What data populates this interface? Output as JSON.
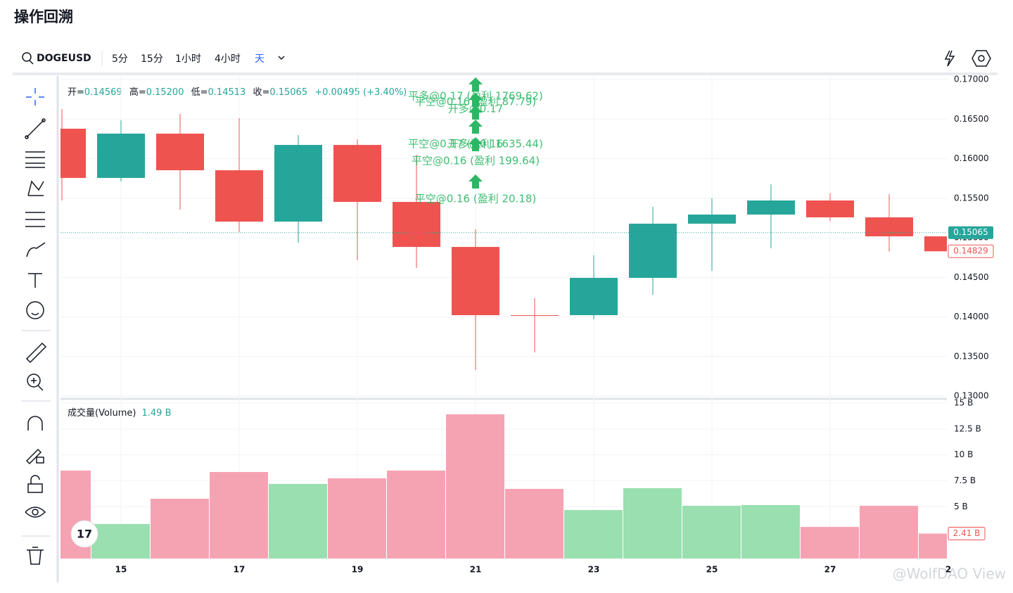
{
  "header": {
    "title": "操作回溯"
  },
  "toolbar": {
    "symbol": "DOGEUSD",
    "intervals": [
      "5分",
      "15分",
      "1小时",
      "4小时",
      "天"
    ]
  },
  "legend": {
    "open_label": "开=",
    "open": "0.14569",
    "high_label": "高=",
    "high": "0.15200",
    "low_label": "低=",
    "low": "0.14513",
    "close_label": "收=",
    "close": "0.15065",
    "change": "+0.00495 (+3.40%)"
  },
  "volume_legend": {
    "label": "成交量(Volume)",
    "value": "1.49 B"
  },
  "annotations": [
    "平多@0.17 (盈利 1769.62)",
    "平空@0.16 (盈利 87.79)",
    "开多@0.17",
    "平空@0.17 (盈利 1635.44)",
    "开多@0.16",
    "平空@0.16 (盈利 199.64)",
    "平空@0.16 (盈利 20.18)"
  ],
  "watermark": "@WolfDAO View",
  "chart_data": [
    {
      "type": "candlestick",
      "categories": [
        null,
        "15",
        null,
        "17",
        null,
        "19",
        null,
        "21",
        null,
        "23",
        null,
        "25",
        null,
        "27",
        null,
        "2"
      ],
      "open": [
        0.16378,
        0.15756,
        0.16316,
        0.15853,
        0.15204,
        0.16173,
        0.15453,
        0.14884,
        0.14022,
        0.14022,
        0.14493,
        0.15178,
        0.15293,
        0.15471,
        0.15258,
        0.15018
      ],
      "high": [
        0.16627,
        0.16484,
        0.16564,
        0.16511,
        0.16298,
        0.16244,
        0.16049,
        0.15107,
        0.14236,
        0.14778,
        0.15391,
        0.155,
        0.15676,
        0.1556,
        0.15551,
        0.15018
      ],
      "low": [
        0.15471,
        0.15711,
        0.15356,
        0.15071,
        0.14938,
        0.14716,
        0.14618,
        0.13329,
        0.13551,
        0.13969,
        0.1428,
        0.14582,
        0.14867,
        0.15213,
        0.14827,
        0.14829
      ],
      "close": [
        0.15756,
        0.16316,
        0.15853,
        0.15204,
        0.16173,
        0.15453,
        0.14884,
        0.14022,
        0.1402,
        0.14493,
        0.15178,
        0.15293,
        0.15471,
        0.15258,
        0.15018,
        0.14829
      ],
      "up_color": "#26a69a",
      "down_color": "#ef5350",
      "ylim": [
        0.13,
        0.17
      ],
      "yticks": [
        {
          "value": 0.17,
          "label": "0.17000"
        },
        {
          "value": 0.165,
          "label": "0.16500"
        },
        {
          "value": 0.16,
          "label": "0.16000"
        },
        {
          "value": 0.155,
          "label": "0.15500"
        },
        {
          "value": 0.15,
          "label": "0.15000"
        },
        {
          "value": 0.145,
          "label": "0.14500"
        },
        {
          "value": 0.14,
          "label": "0.14000"
        },
        {
          "value": 0.135,
          "label": "0.13500"
        },
        {
          "value": 0.13,
          "label": "0.13000"
        }
      ],
      "price_marks": [
        {
          "value": 0.15065,
          "label": "0.15065",
          "color": "#26a69a"
        },
        {
          "value": 0.14829,
          "label": "0.14829",
          "color": "#ef5350"
        }
      ],
      "grid": true
    },
    {
      "type": "bar",
      "values": [
        8.49,
        3.33,
        5.77,
        8.35,
        7.2,
        7.74,
        8.49,
        13.92,
        6.72,
        4.68,
        6.79,
        5.09,
        5.16,
        3.05,
        5.09,
        2.41
      ],
      "up_color": "#99dfb0",
      "down_color": "#f5a3b3",
      "ylim": [
        0,
        15
      ],
      "yticks": [
        {
          "value": 15,
          "label": "15 B"
        },
        {
          "value": 12.5,
          "label": "12.5 B"
        },
        {
          "value": 10,
          "label": "10 B"
        },
        {
          "value": 7.5,
          "label": "7.5 B"
        },
        {
          "value": 5,
          "label": "5 B"
        }
      ],
      "last_label": "2.41 B",
      "grid": true
    }
  ]
}
